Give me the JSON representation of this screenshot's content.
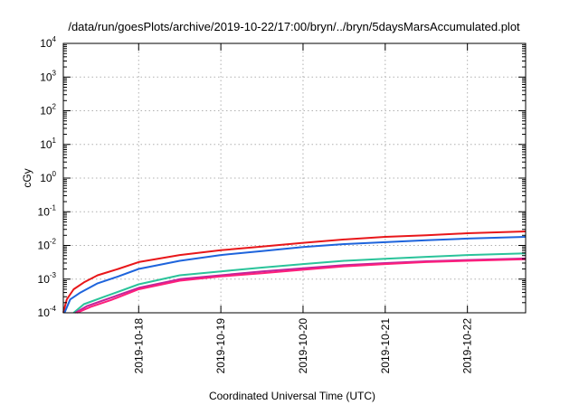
{
  "chart_data": {
    "type": "line",
    "title": "/data/run/goesPlots/archive/2019-10-22/17:00/bryn/../bryn/5daysMarsAccumulated.plot",
    "xlabel": "Coordinated Universal Time (UTC)",
    "ylabel": "cGy",
    "yscale": "log",
    "ylim": [
      0.0001,
      10000
    ],
    "xlim": [
      "2019-10-17T02:00",
      "2019-10-22T17:00"
    ],
    "grid": true,
    "x_ticks": [
      "2019-10-18",
      "2019-10-19",
      "2019-10-20",
      "2019-10-21",
      "2019-10-22"
    ],
    "y_ticks": [
      {
        "base": "10",
        "exp": "-4",
        "value": 0.0001
      },
      {
        "base": "10",
        "exp": "-3",
        "value": 0.001
      },
      {
        "base": "10",
        "exp": "-2",
        "value": 0.01
      },
      {
        "base": "10",
        "exp": "-1",
        "value": 0.1
      },
      {
        "base": "10",
        "exp": "0",
        "value": 1
      },
      {
        "base": "10",
        "exp": "1",
        "value": 10
      },
      {
        "base": "10",
        "exp": "2",
        "value": 100
      },
      {
        "base": "10",
        "exp": "3",
        "value": 1000
      },
      {
        "base": "10",
        "exp": "4",
        "value": 10000
      }
    ],
    "series": [
      {
        "color": "#e8171a",
        "points": [
          [
            "2019-10-17T02:00",
            0.0001
          ],
          [
            "2019-10-17T03:00",
            0.00025
          ],
          [
            "2019-10-17T05:00",
            0.0005
          ],
          [
            "2019-10-17T08:00",
            0.0008
          ],
          [
            "2019-10-17T12:00",
            0.0013
          ],
          [
            "2019-10-17T18:00",
            0.002
          ],
          [
            "2019-10-18T00:00",
            0.0032
          ],
          [
            "2019-10-18T12:00",
            0.0052
          ],
          [
            "2019-10-19T00:00",
            0.0072
          ],
          [
            "2019-10-19T12:00",
            0.0092
          ],
          [
            "2019-10-20T00:00",
            0.012
          ],
          [
            "2019-10-20T12:00",
            0.015
          ],
          [
            "2019-10-21T00:00",
            0.018
          ],
          [
            "2019-10-21T12:00",
            0.02
          ],
          [
            "2019-10-22T00:00",
            0.023
          ],
          [
            "2019-10-22T17:00",
            0.026
          ]
        ]
      },
      {
        "color": "#1e64dc",
        "points": [
          [
            "2019-10-17T02:20",
            0.0001
          ],
          [
            "2019-10-17T04:00",
            0.00025
          ],
          [
            "2019-10-17T07:00",
            0.0004
          ],
          [
            "2019-10-17T12:00",
            0.00075
          ],
          [
            "2019-10-17T18:00",
            0.0012
          ],
          [
            "2019-10-18T00:00",
            0.002
          ],
          [
            "2019-10-18T12:00",
            0.0035
          ],
          [
            "2019-10-19T00:00",
            0.0052
          ],
          [
            "2019-10-19T12:00",
            0.0068
          ],
          [
            "2019-10-20T00:00",
            0.009
          ],
          [
            "2019-10-20T12:00",
            0.011
          ],
          [
            "2019-10-21T00:00",
            0.0125
          ],
          [
            "2019-10-21T12:00",
            0.0142
          ],
          [
            "2019-10-22T00:00",
            0.016
          ],
          [
            "2019-10-22T17:00",
            0.018
          ]
        ]
      },
      {
        "color": "#2ac39a",
        "points": [
          [
            "2019-10-17T05:00",
            0.0001
          ],
          [
            "2019-10-17T08:00",
            0.00018
          ],
          [
            "2019-10-17T14:00",
            0.0003
          ],
          [
            "2019-10-18T00:00",
            0.0007
          ],
          [
            "2019-10-18T12:00",
            0.0013
          ],
          [
            "2019-10-19T00:00",
            0.0017
          ],
          [
            "2019-10-19T12:00",
            0.0022
          ],
          [
            "2019-10-20T00:00",
            0.0028
          ],
          [
            "2019-10-20T12:00",
            0.0035
          ],
          [
            "2019-10-21T00:00",
            0.004
          ],
          [
            "2019-10-21T12:00",
            0.0046
          ],
          [
            "2019-10-22T00:00",
            0.0052
          ],
          [
            "2019-10-22T17:00",
            0.0058
          ]
        ]
      },
      {
        "color": "#c0249b",
        "points": [
          [
            "2019-10-17T05:30",
            0.0001
          ],
          [
            "2019-10-17T09:00",
            0.00016
          ],
          [
            "2019-10-17T15:00",
            0.00026
          ],
          [
            "2019-10-18T00:00",
            0.00055
          ],
          [
            "2019-10-18T12:00",
            0.001
          ],
          [
            "2019-10-19T00:00",
            0.0013
          ],
          [
            "2019-10-19T12:00",
            0.0017
          ],
          [
            "2019-10-20T00:00",
            0.0021
          ],
          [
            "2019-10-20T12:00",
            0.0026
          ],
          [
            "2019-10-21T00:00",
            0.003
          ],
          [
            "2019-10-21T12:00",
            0.0034
          ],
          [
            "2019-10-22T00:00",
            0.0037
          ],
          [
            "2019-10-22T17:00",
            0.0041
          ]
        ]
      },
      {
        "color": "#ff1f7a",
        "points": [
          [
            "2019-10-17T06:00",
            0.0001
          ],
          [
            "2019-10-17T10:00",
            0.00015
          ],
          [
            "2019-10-17T16:00",
            0.00024
          ],
          [
            "2019-10-18T00:00",
            0.0005
          ],
          [
            "2019-10-18T12:00",
            0.0009
          ],
          [
            "2019-10-19T00:00",
            0.0012
          ],
          [
            "2019-10-19T12:00",
            0.0015
          ],
          [
            "2019-10-20T00:00",
            0.0019
          ],
          [
            "2019-10-20T12:00",
            0.0024
          ],
          [
            "2019-10-21T00:00",
            0.0028
          ],
          [
            "2019-10-21T12:00",
            0.0032
          ],
          [
            "2019-10-22T00:00",
            0.0035
          ],
          [
            "2019-10-22T17:00",
            0.0039
          ]
        ]
      }
    ]
  }
}
